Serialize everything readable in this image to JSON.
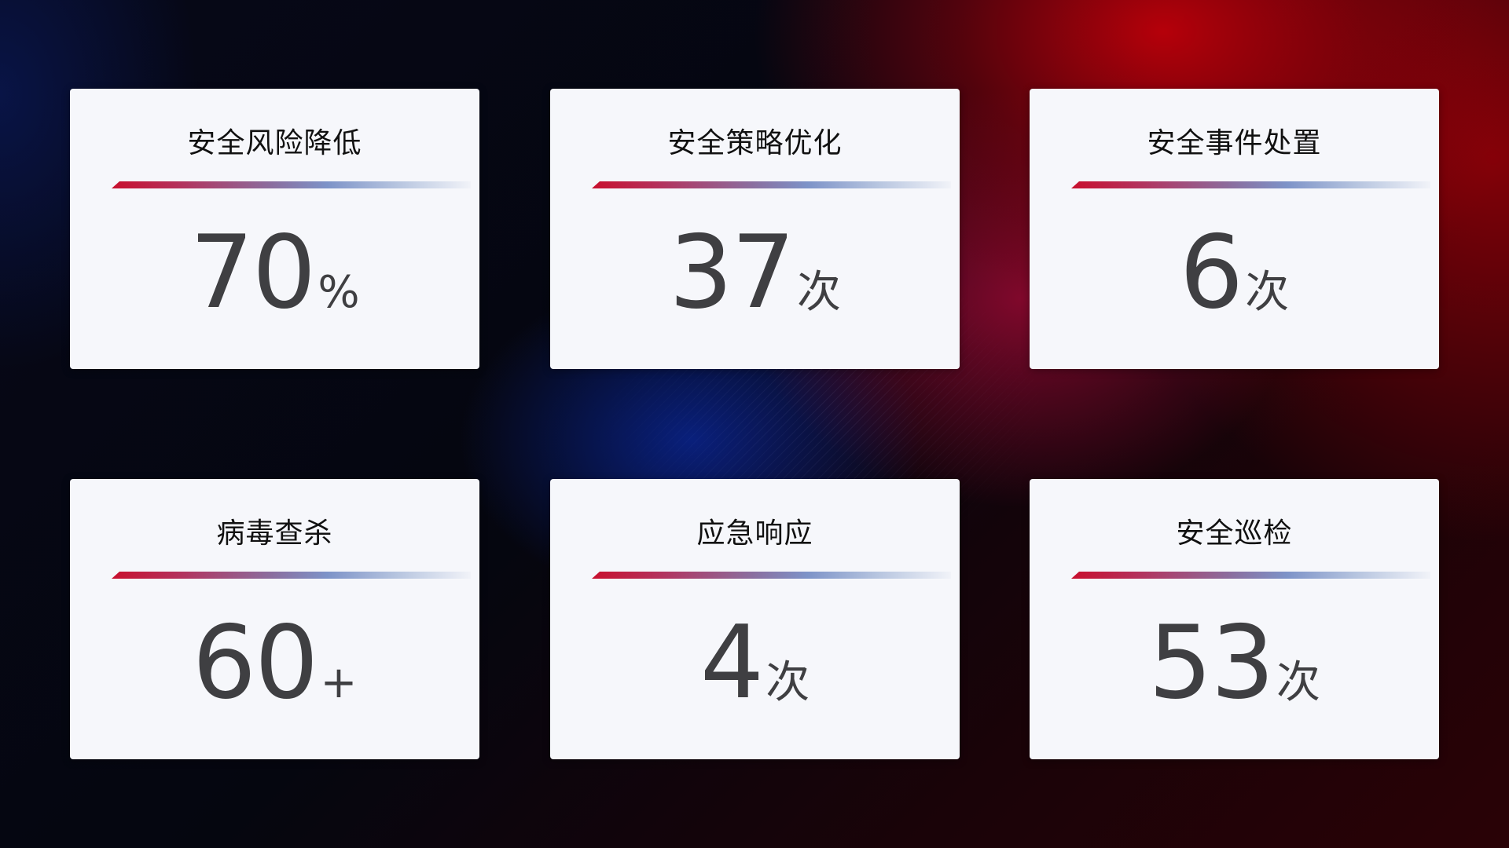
{
  "cards": [
    {
      "title": "安全风险降低",
      "value": "70",
      "unit": "%"
    },
    {
      "title": "安全策略优化",
      "value": "37",
      "unit": "次"
    },
    {
      "title": "安全事件处置",
      "value": "6",
      "unit": "次"
    },
    {
      "title": "病毒查杀",
      "value": "60",
      "unit": "+"
    },
    {
      "title": "应急响应",
      "value": "4",
      "unit": "次"
    },
    {
      "title": "安全巡检",
      "value": "53",
      "unit": "次"
    }
  ],
  "colors": {
    "accent_red": "#c8102e",
    "accent_blue": "#7d93c8",
    "card_bg": "#f6f7fb",
    "value_text": "#3f3f42"
  }
}
